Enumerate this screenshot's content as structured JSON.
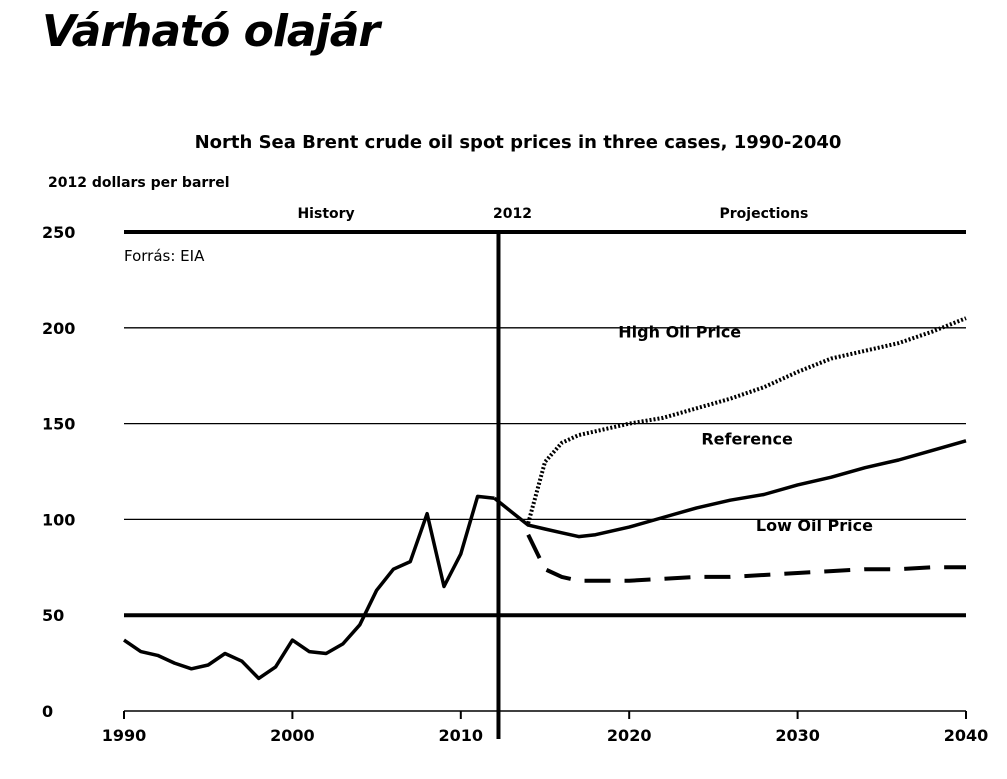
{
  "page": {
    "headline": "Várható olajár"
  },
  "chart_data": {
    "type": "line",
    "title": "North Sea Brent crude oil spot prices in three cases, 1990-2040",
    "ylabel": "2012 dollars per barrel",
    "xlabel": "",
    "source_note": "Forrás: EIA",
    "xlim": [
      1990,
      2040
    ],
    "ylim": [
      0,
      250
    ],
    "x_ticks": [
      1990,
      2000,
      2010,
      2020,
      2030,
      2040
    ],
    "y_ticks": [
      0,
      50,
      100,
      150,
      200,
      250
    ],
    "grid": true,
    "legend": "inline labels",
    "divider": {
      "x": 2012,
      "label": "2012"
    },
    "region_labels": [
      {
        "text": "History",
        "x": 2002
      },
      {
        "text": "Projections",
        "x": 2028
      }
    ],
    "series": [
      {
        "name": "History",
        "style": "solid",
        "x": [
          1990,
          1991,
          1992,
          1993,
          1994,
          1995,
          1996,
          1997,
          1998,
          1999,
          2000,
          2001,
          2002,
          2003,
          2004,
          2005,
          2006,
          2007,
          2008,
          2009,
          2010,
          2011,
          2012
        ],
        "y": [
          37,
          31,
          29,
          25,
          22,
          24,
          30,
          26,
          17,
          23,
          37,
          31,
          30,
          35,
          45,
          63,
          74,
          78,
          103,
          65,
          82,
          112,
          111
        ]
      },
      {
        "name": "Reference",
        "style": "solid",
        "x": [
          2012,
          2013,
          2014,
          2015,
          2016,
          2017,
          2018,
          2020,
          2022,
          2024,
          2026,
          2028,
          2030,
          2032,
          2034,
          2036,
          2038,
          2040
        ],
        "y": [
          111,
          104,
          97,
          95,
          93,
          91,
          92,
          96,
          101,
          106,
          110,
          113,
          118,
          122,
          127,
          131,
          136,
          141
        ]
      },
      {
        "name": "High Oil Price",
        "style": "dotted",
        "x": [
          2014,
          2015,
          2016,
          2017,
          2018,
          2020,
          2022,
          2024,
          2026,
          2028,
          2030,
          2032,
          2034,
          2036,
          2038,
          2040
        ],
        "y": [
          98,
          130,
          140,
          144,
          146,
          150,
          153,
          158,
          163,
          169,
          177,
          184,
          188,
          192,
          198,
          205
        ]
      },
      {
        "name": "Low Oil Price",
        "style": "dashed",
        "x": [
          2014,
          2015,
          2016,
          2017,
          2018,
          2020,
          2022,
          2024,
          2026,
          2028,
          2030,
          2032,
          2034,
          2036,
          2038,
          2040
        ],
        "y": [
          92,
          74,
          70,
          68,
          68,
          68,
          69,
          70,
          70,
          71,
          72,
          73,
          74,
          74,
          75,
          75
        ]
      }
    ],
    "series_labels": [
      {
        "text": "High Oil Price",
        "x": 2023,
        "y": 195
      },
      {
        "text": "Reference",
        "x": 2027,
        "y": 139
      },
      {
        "text": "Low Oil Price",
        "x": 2031,
        "y": 94
      }
    ]
  }
}
